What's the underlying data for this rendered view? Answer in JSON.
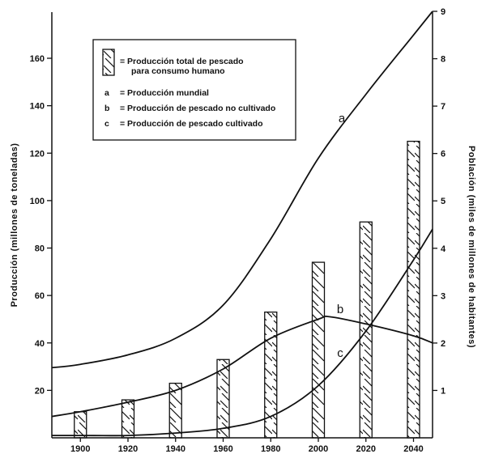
{
  "chart_data": {
    "type": "bar",
    "x": [
      1900,
      1920,
      1940,
      1960,
      1980,
      2000,
      2020,
      2040
    ],
    "x_ticks": [
      "1900",
      "1920",
      "1940",
      "1960",
      "1980",
      "2000",
      "2020",
      "2040"
    ],
    "xlim": [
      1888,
      2048
    ],
    "ylim_left": [
      0,
      170
    ],
    "ylim_right": [
      0,
      9
    ],
    "y_ticks_left": [
      "20",
      "40",
      "60",
      "80",
      "100",
      "120",
      "140",
      "160"
    ],
    "y_ticks_right": [
      "1",
      "2",
      "3",
      "4",
      "5",
      "6",
      "7",
      "8",
      "9"
    ],
    "ylabel_left": "Producción (millones de toneladas)",
    "ylabel_right": "Población (miles de millones de habitantes)",
    "bars": {
      "legend": "= Producción total de pescado para consumo humano",
      "legend_line1": "= Producción total de pescado",
      "legend_line2": "para consumo humano",
      "values": [
        11,
        16,
        23,
        33,
        53,
        74,
        91,
        125
      ]
    },
    "series": [
      {
        "name": "a",
        "legend_key": "a",
        "legend": "= Producción mundial",
        "axis": "right",
        "x": [
          1888,
          1900,
          1920,
          1940,
          1960,
          1980,
          2000,
          2020,
          2040,
          2048
        ],
        "y": [
          1.48,
          1.55,
          1.75,
          2.1,
          2.8,
          4.2,
          5.9,
          7.25,
          8.5,
          9.0
        ]
      },
      {
        "name": "b",
        "legend_key": "b",
        "legend": "= Producción de pescado no cultivado",
        "axis": "left",
        "x": [
          1888,
          1900,
          1920,
          1940,
          1960,
          1980,
          2000,
          2005,
          2020,
          2040,
          2048
        ],
        "y": [
          9,
          11,
          15,
          20,
          29,
          42,
          50,
          51,
          48,
          43,
          40
        ]
      },
      {
        "name": "c",
        "legend_key": "c",
        "legend": "= Producción de pescado cultivado",
        "axis": "left",
        "x": [
          1888,
          1900,
          1920,
          1940,
          1960,
          1980,
          2000,
          2020,
          2040,
          2048
        ],
        "y": [
          1,
          1,
          1,
          2,
          4,
          9,
          22,
          45,
          75,
          88
        ]
      }
    ]
  }
}
